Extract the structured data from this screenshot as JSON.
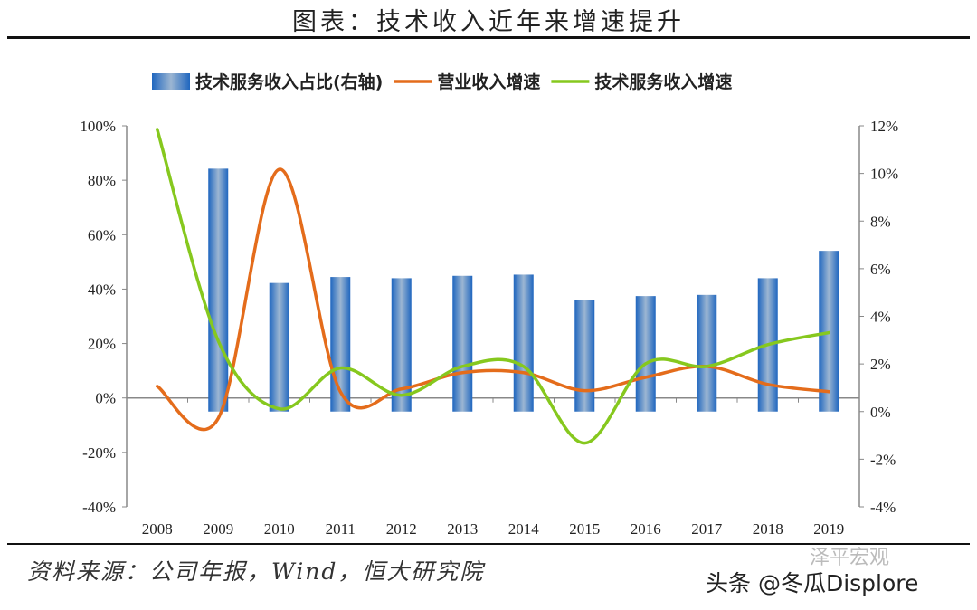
{
  "title": "图表：技术收入近年来增速提升",
  "source": "资料来源：公司年报，Wind，恒大研究院",
  "watermark": "头条 @冬瓜Displore",
  "watermark_logo": "泽平宏观",
  "chart_data": {
    "type": "bar+line",
    "categories": [
      "2008",
      "2009",
      "2010",
      "2011",
      "2012",
      "2013",
      "2014",
      "2015",
      "2016",
      "2017",
      "2018",
      "2019"
    ],
    "left_axis": {
      "ylim": [
        -40,
        100
      ],
      "ticks": [
        "-40%",
        "-20%",
        "0%",
        "20%",
        "40%",
        "60%",
        "80%",
        "100%"
      ]
    },
    "right_axis": {
      "ylim": [
        -4,
        12
      ],
      "ticks": [
        "-4%",
        "-2%",
        "0%",
        "2%",
        "4%",
        "6%",
        "8%",
        "10%",
        "12%"
      ]
    },
    "legend_position": "top",
    "grid": false,
    "series": [
      {
        "name": "技术服务收入占比(右轴)",
        "type": "bar",
        "axis": "right",
        "color": "#2f74c0",
        "values": [
          null,
          10.2,
          5.4,
          5.65,
          5.6,
          5.7,
          5.75,
          4.7,
          4.85,
          4.9,
          5.6,
          6.75
        ]
      },
      {
        "name": "营业收入增速",
        "type": "line",
        "axis": "left",
        "color": "#e46c1b",
        "values": [
          4.3,
          -7.5,
          84,
          2.3,
          3.3,
          9.3,
          9.3,
          2.7,
          7.6,
          11.6,
          5,
          2.3
        ]
      },
      {
        "name": "技术服务收入增速",
        "type": "line",
        "axis": "left",
        "color": "#86c81e",
        "values": [
          98.7,
          21,
          -4,
          11,
          1,
          11.6,
          11.6,
          -16.6,
          12.6,
          11.6,
          19.6,
          24
        ]
      }
    ]
  }
}
